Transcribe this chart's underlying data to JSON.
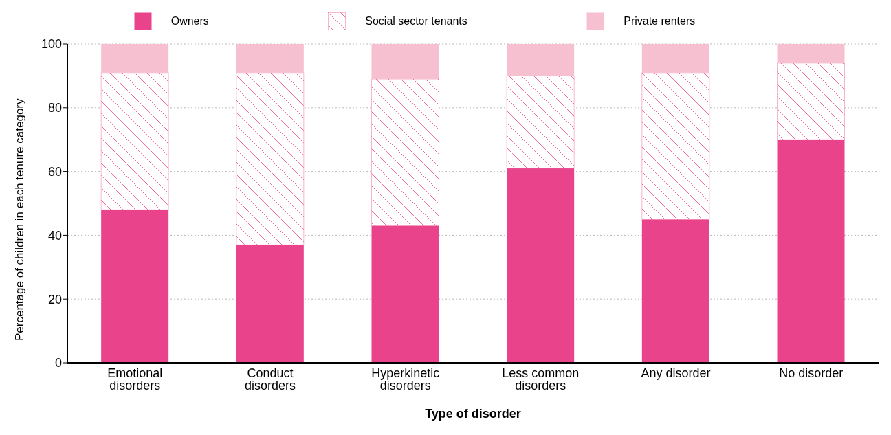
{
  "chart_data": {
    "type": "bar",
    "stacked": true,
    "xlabel": "Type of disorder",
    "ylabel": "Percentage of children in each tenure category",
    "categories": [
      "Emotional disorders",
      "Conduct disorders",
      "Hyperkinetic disorders",
      "Less common disorders",
      "Any disorder",
      "No disorder"
    ],
    "series": [
      {
        "name": "Owners",
        "color": "#e8438b",
        "values": [
          48,
          37,
          43,
          61,
          45,
          70
        ]
      },
      {
        "name": "Social sector tenants",
        "color": "#f06ea0",
        "values": [
          43,
          54,
          46,
          29,
          46,
          24
        ]
      },
      {
        "name": "Private renters",
        "color": "#f7c0d0",
        "values": [
          9,
          9,
          11,
          10,
          9,
          6
        ]
      }
    ],
    "ylim": [
      0,
      100
    ],
    "yticks": [
      0,
      20,
      40,
      60,
      80,
      100
    ],
    "grid": "y",
    "legend": "top"
  }
}
